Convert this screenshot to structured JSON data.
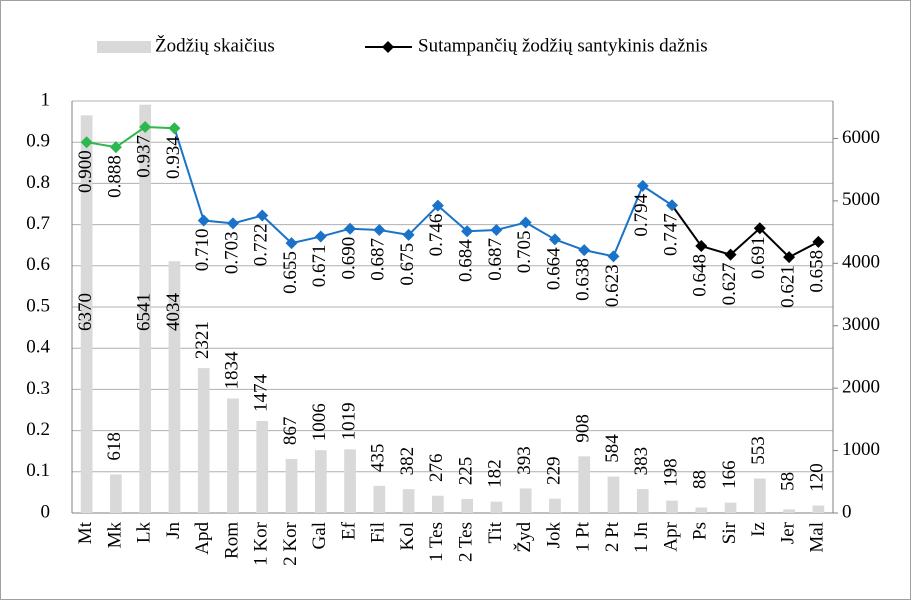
{
  "chart_data": {
    "type": "bar_line",
    "categories": [
      "Mt",
      "Mk",
      "Lk",
      "Jn",
      "Apd",
      "Rom",
      "1 Kor",
      "2 Kor",
      "Gal",
      "Ef",
      "Fil",
      "Kol",
      "1 Tes",
      "2 Tes",
      "Tit",
      "Žyd",
      "Jok",
      "1 Pt",
      "2 Pt",
      "1 Jn",
      "Apr",
      "Ps",
      "Sir",
      "Iz",
      "Jer",
      "Mal"
    ],
    "series": [
      {
        "name": "Žodžių skaičius",
        "type": "bar",
        "axis": "y2",
        "color": "#d9d9d9",
        "values": [
          6370,
          618,
          6541,
          4034,
          2321,
          1834,
          1474,
          867,
          1006,
          1019,
          435,
          382,
          276,
          225,
          182,
          393,
          229,
          908,
          584,
          383,
          198,
          88,
          166,
          553,
          58,
          120
        ]
      },
      {
        "name": "Sutampančių žodžių santykinis dažnis",
        "type": "line",
        "axis": "y",
        "color": "#000000",
        "values": [
          0.9,
          0.888,
          0.937,
          0.934,
          0.71,
          0.703,
          0.722,
          0.655,
          0.671,
          0.69,
          0.687,
          0.675,
          0.746,
          0.684,
          0.687,
          0.705,
          0.664,
          0.638,
          0.623,
          0.794,
          0.747,
          0.648,
          0.627,
          0.691,
          0.621,
          0.658
        ],
        "value_labels": [
          "0.900",
          "0.888",
          "0.937",
          "0.934",
          "0.710",
          "0.703",
          "0.722",
          "0.655",
          "0.671",
          "0.690",
          "0.687",
          "0.675",
          "0.746",
          "0.684",
          "0.687",
          "0.705",
          "0.664",
          "0.638",
          "0.623",
          "0.794",
          "0.747",
          "0.648",
          "0.627",
          "0.691",
          "0.621",
          "0.658"
        ],
        "point_colors": [
          "#2db84d",
          "#2db84d",
          "#2db84d",
          "#2db84d",
          "#1a73c8",
          "#1a73c8",
          "#1a73c8",
          "#1a73c8",
          "#1a73c8",
          "#1a73c8",
          "#1a73c8",
          "#1a73c8",
          "#1a73c8",
          "#1a73c8",
          "#1a73c8",
          "#1a73c8",
          "#1a73c8",
          "#1a73c8",
          "#1a73c8",
          "#1a73c8",
          "#1a73c8",
          "#000000",
          "#000000",
          "#000000",
          "#000000",
          "#000000"
        ]
      }
    ],
    "ylim": [
      0,
      1
    ],
    "yticks": [
      0,
      0.1,
      0.2,
      0.3,
      0.4,
      0.5,
      0.6,
      0.7,
      0.8,
      0.9,
      1
    ],
    "y2lim": [
      0,
      6600
    ],
    "y2ticks": [
      0,
      1000,
      2000,
      3000,
      4000,
      5000,
      6000
    ],
    "grid": true,
    "legend": "top"
  }
}
